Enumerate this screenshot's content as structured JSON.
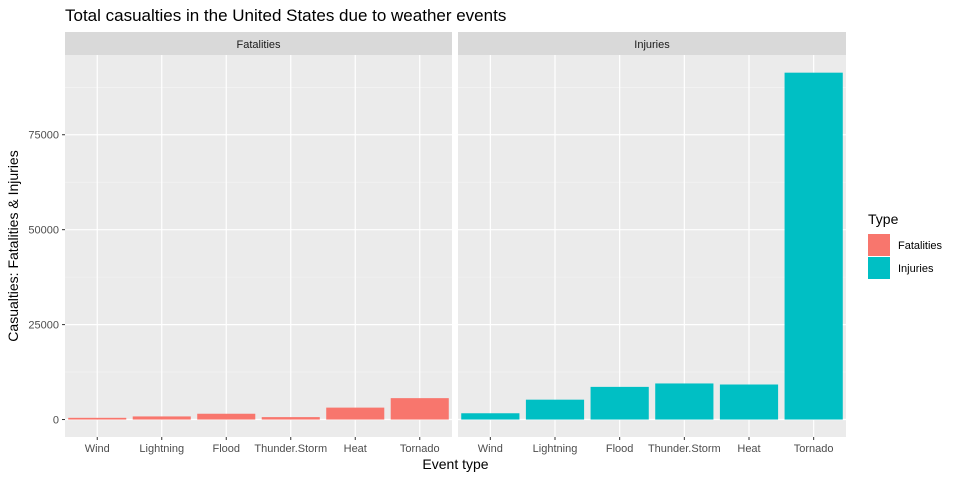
{
  "chart_data": {
    "type": "bar",
    "title": "Total casualties in the United States due to weather events",
    "xlabel": "Event type",
    "ylabel": "Casualties: Fatalities & Injuries",
    "categories": [
      "Wind",
      "Lightning",
      "Flood",
      "Thunder.Storm",
      "Heat",
      "Tornado"
    ],
    "facets": [
      "Fatalities",
      "Injuries"
    ],
    "series": [
      {
        "name": "Fatalities",
        "color": "#F8766D",
        "values": [
          450,
          816,
          1524,
          637,
          3138,
          5633
        ]
      },
      {
        "name": "Injuries",
        "color": "#00BFC4",
        "values": [
          1650,
          5230,
          8600,
          9500,
          9225,
          91346
        ]
      }
    ],
    "ylim": [
      -4600,
      96000
    ],
    "yticks": [
      0,
      25000,
      50000,
      75000
    ],
    "yticklabels": [
      "0",
      "25000",
      "50000",
      "75000"
    ],
    "legend": {
      "title": "Type",
      "position": "right"
    },
    "grid": true
  }
}
